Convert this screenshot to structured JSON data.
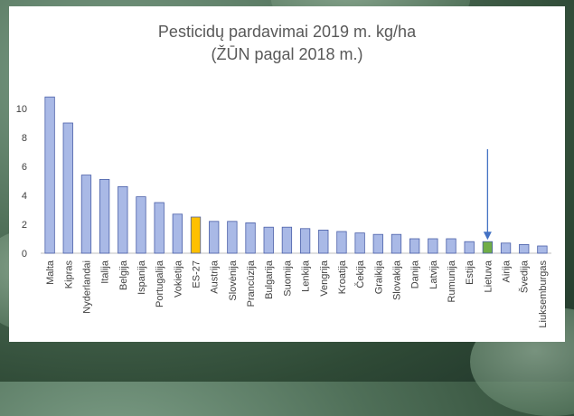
{
  "chart_data": {
    "type": "bar",
    "title": "Pesticidų pardavimai 2019 m. kg/ha",
    "subtitle": "(ŽŪN pagal 2018 m.)",
    "xlabel": "",
    "ylabel": "",
    "ylim": [
      0,
      12
    ],
    "yticks": [
      0,
      2,
      4,
      6,
      8,
      10
    ],
    "grid": false,
    "legend": "none",
    "categories": [
      "Malta",
      "Kipras",
      "Nyderlandai",
      "Italija",
      "Belgija",
      "Ispanija",
      "Portugalija",
      "Vokietija",
      "ES-27",
      "Austrija",
      "Slovėnija",
      "Prancūzija",
      "Bulgarija",
      "Suomija",
      "Lenkija",
      "Vengrija",
      "Kroatija",
      "Čekija",
      "Graikija",
      "Slovakija",
      "Danija",
      "Latvija",
      "Rumunija",
      "Estija",
      "Lietuva",
      "Airija",
      "Švedija",
      "Liuksemburgas"
    ],
    "values": [
      10.8,
      9.0,
      5.4,
      5.1,
      4.6,
      3.9,
      3.5,
      2.7,
      2.5,
      2.2,
      2.2,
      2.1,
      1.8,
      1.8,
      1.7,
      1.6,
      1.5,
      1.4,
      1.3,
      1.3,
      1.0,
      1.0,
      1.0,
      0.8,
      0.8,
      0.7,
      0.6,
      0.5
    ],
    "colors": {
      "default": "#a9b9e6",
      "default_stroke": "#4a5fa8",
      "highlight_es27": "#ffc000",
      "highlight_lietuva": "#70ad47",
      "arrow": "#4472c4"
    },
    "highlights": {
      "ES-27": "highlight_es27",
      "Lietuva": "highlight_lietuva"
    },
    "annotation": {
      "type": "arrow",
      "target": "Lietuva"
    }
  }
}
